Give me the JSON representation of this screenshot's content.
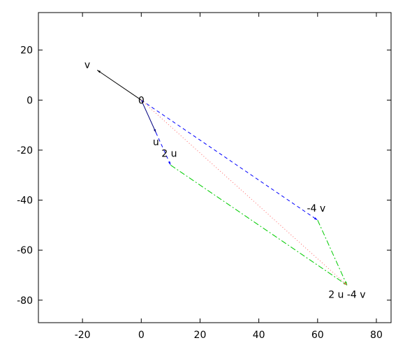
{
  "chart_data": {
    "type": "vector",
    "origin_label": "0",
    "xlim": [
      -35,
      85
    ],
    "ylim": [
      -89,
      35
    ],
    "xticks": [
      -20,
      0,
      20,
      40,
      60,
      80
    ],
    "yticks": [
      -80,
      -60,
      -40,
      -20,
      0,
      20
    ],
    "vectors": [
      {
        "name": "v",
        "x": [
          0,
          -15
        ],
        "y": [
          0,
          12
        ],
        "color": "#000000",
        "dash": "solid",
        "label_side": "left"
      },
      {
        "name": "u",
        "x": [
          0,
          5
        ],
        "y": [
          0,
          -13
        ],
        "color": "#000080",
        "dash": "solid",
        "label_side": "below"
      },
      {
        "name": "2 u",
        "x": [
          5,
          10
        ],
        "y": [
          -13,
          -26
        ],
        "color": "#0000ff",
        "dash": "dashed",
        "label_side": "above"
      },
      {
        "name": "-4 v",
        "x": [
          0,
          60
        ],
        "y": [
          0,
          -48
        ],
        "color": "#0000ff",
        "dash": "dashed",
        "label_side": "above"
      },
      {
        "name": "2 u -4 v",
        "x": [
          10,
          70
        ],
        "y": [
          -26,
          -74
        ],
        "color": "#00cc00",
        "dash": "dashdot",
        "label_side": "below"
      },
      {
        "x": [
          60,
          70
        ],
        "y": [
          -48,
          -74
        ],
        "color": "#00cc00",
        "dash": "dashdot"
      },
      {
        "x": [
          0,
          70
        ],
        "y": [
          0,
          -74
        ],
        "color": "#ff6666",
        "dash": "dotted"
      }
    ]
  }
}
